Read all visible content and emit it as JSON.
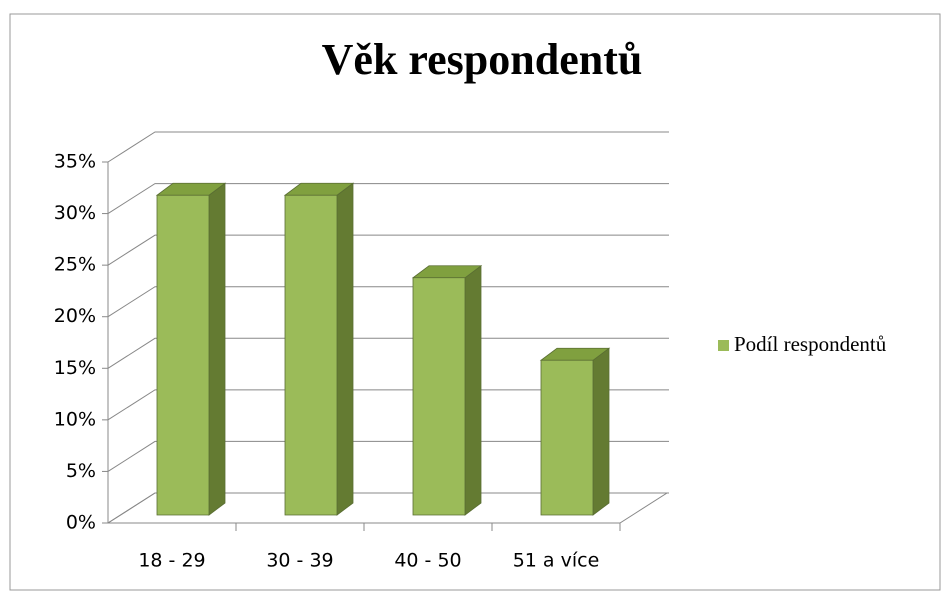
{
  "chart_data": {
    "type": "bar3d",
    "title": "Věk respondentů",
    "categories": [
      "18 - 29",
      "30 - 39",
      "40 - 50",
      "51 a více"
    ],
    "series": [
      {
        "name": "Podíl respondentů",
        "color": "#9bbb59",
        "values": [
          31,
          31,
          23,
          15
        ]
      }
    ],
    "ylim": [
      0,
      35
    ],
    "yticks": [
      {
        "value": 0,
        "label": "0%"
      },
      {
        "value": 5,
        "label": "5%"
      },
      {
        "value": 10,
        "label": "10%"
      },
      {
        "value": 15,
        "label": "15%"
      },
      {
        "value": 20,
        "label": "20%"
      },
      {
        "value": 25,
        "label": "25%"
      },
      {
        "value": 30,
        "label": "30%"
      },
      {
        "value": 35,
        "label": "35%"
      }
    ],
    "grid": true,
    "legend": "right"
  }
}
